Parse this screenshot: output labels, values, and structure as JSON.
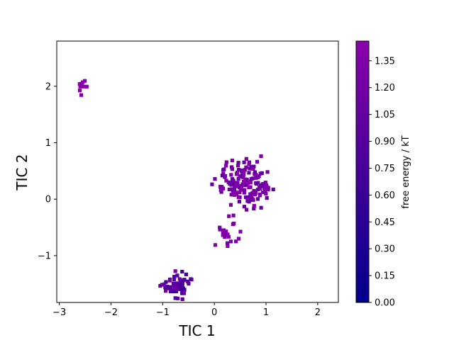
{
  "chart_data": {
    "type": "heatmap",
    "title": "",
    "xlabel": "TIC 1",
    "ylabel": "TIC 2",
    "xlim": [
      -3.05,
      2.4
    ],
    "ylim": [
      -1.83,
      2.8
    ],
    "xticks": [
      -3,
      -2,
      -1,
      0,
      1,
      2
    ],
    "xtick_labels": [
      "−3",
      "−2",
      "−1",
      "0",
      "1",
      "2"
    ],
    "yticks": [
      -1,
      0,
      1,
      2
    ],
    "ytick_labels": [
      "−1",
      "0",
      "1",
      "2"
    ],
    "colorbar": {
      "label": "free energy / kT",
      "min": 0.0,
      "max": 1.46,
      "ticks": [
        0.0,
        0.15,
        0.3,
        0.45,
        0.6,
        0.75,
        0.9,
        1.05,
        1.2,
        1.35
      ],
      "tick_labels": [
        "0.00",
        "0.15",
        "0.30",
        "0.45",
        "0.60",
        "0.75",
        "0.90",
        "1.05",
        "1.20",
        "1.35"
      ],
      "colormap": [
        "#00008b",
        "#8b00aa"
      ]
    },
    "clusters": [
      {
        "name": "",
        "center": [
          -2.62,
          2.05
        ],
        "spread": [
          0.1,
          0.14
        ],
        "n": 12,
        "energy_range": [
          1.3,
          1.46
        ]
      },
      {
        "name": "",
        "center": [
          -0.75,
          -1.5
        ],
        "spread": [
          0.2,
          0.18
        ],
        "n": 70,
        "energy_range": [
          0.6,
          1.3
        ]
      },
      {
        "name": "",
        "center": [
          0.55,
          0.3
        ],
        "spread": [
          0.4,
          0.35
        ],
        "n": 160,
        "energy_range": [
          1.0,
          1.46
        ]
      },
      {
        "name": "",
        "center": [
          0.2,
          -0.55
        ],
        "spread": [
          0.2,
          0.2
        ],
        "n": 25,
        "energy_range": [
          1.2,
          1.46
        ]
      }
    ],
    "grid": false
  }
}
